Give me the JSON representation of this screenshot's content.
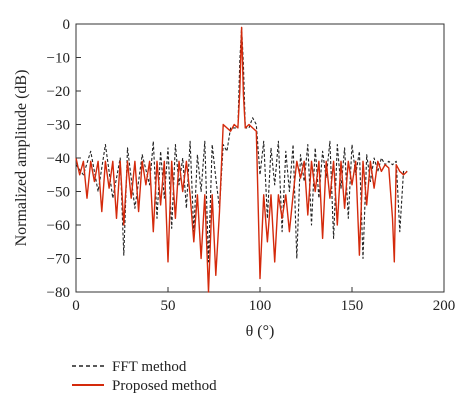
{
  "chart_data": {
    "type": "line",
    "title": "",
    "xlabel": "θ (°)",
    "ylabel": "Normalized amplitude (dB)",
    "xlim": [
      0,
      200
    ],
    "ylim": [
      -80,
      0
    ],
    "xticks": [
      0,
      50,
      100,
      150,
      200
    ],
    "yticks": [
      0,
      -10,
      -20,
      -30,
      -40,
      -50,
      -60,
      -70,
      -80
    ],
    "grid": false,
    "legend_position": "bottom-left",
    "series": [
      {
        "name": "FFT method",
        "color": "#222222",
        "style": "dashed",
        "x": [
          0,
          4,
          8,
          12,
          16,
          20,
          24,
          26,
          28,
          32,
          36,
          40,
          42,
          44,
          46,
          48,
          50,
          52,
          54,
          56,
          58,
          60,
          62,
          64,
          66,
          68,
          70,
          72,
          74,
          76,
          78,
          80,
          82,
          84,
          86,
          88,
          89,
          90,
          91,
          92,
          94,
          96,
          98,
          100,
          102,
          104,
          106,
          108,
          110,
          112,
          114,
          116,
          118,
          120,
          122,
          124,
          126,
          128,
          130,
          132,
          134,
          136,
          138,
          140,
          142,
          144,
          146,
          148,
          150,
          152,
          154,
          156,
          158,
          160,
          162,
          164,
          166,
          168,
          170,
          172,
          174,
          176,
          178,
          180
        ],
        "y": [
          -42,
          -45,
          -38,
          -50,
          -36,
          -52,
          -40,
          -69,
          -37,
          -55,
          -39,
          -48,
          -35,
          -58,
          -38,
          -52,
          -37,
          -61,
          -36,
          -48,
          -40,
          -55,
          -35,
          -62,
          -39,
          -50,
          -35,
          -71,
          -36,
          -46,
          -55,
          -36,
          -38,
          -31,
          -31,
          -31,
          -11,
          -1,
          -12,
          -31,
          -31,
          -28,
          -30,
          -45,
          -35,
          -58,
          -37,
          -48,
          -35,
          -62,
          -38,
          -50,
          -36,
          -70,
          -39,
          -47,
          -36,
          -60,
          -37,
          -52,
          -38,
          -46,
          -35,
          -64,
          -36,
          -49,
          -37,
          -58,
          -36,
          -45,
          -38,
          -70,
          -39,
          -47,
          -40,
          -44,
          -40,
          -42,
          -41,
          -42,
          -41,
          -62,
          -44,
          -44
        ]
      },
      {
        "name": "Proposed method",
        "color": "#d42a0c",
        "style": "solid",
        "x": [
          0,
          2,
          4,
          6,
          8,
          10,
          12,
          14,
          16,
          18,
          20,
          22,
          24,
          26,
          28,
          30,
          32,
          34,
          36,
          38,
          40,
          42,
          44,
          46,
          48,
          50,
          52,
          54,
          56,
          58,
          60,
          62,
          64,
          66,
          68,
          70,
          72,
          74,
          76,
          78,
          80,
          82,
          84,
          86,
          88,
          89,
          90,
          91,
          92,
          94,
          96,
          98,
          100,
          102,
          104,
          106,
          108,
          110,
          112,
          114,
          116,
          118,
          120,
          122,
          124,
          126,
          128,
          130,
          132,
          134,
          136,
          138,
          140,
          142,
          144,
          146,
          148,
          150,
          152,
          154,
          156,
          158,
          160,
          162,
          164,
          166,
          168,
          170,
          172,
          173,
          174,
          176,
          178,
          180
        ],
        "y": [
          -40,
          -45,
          -41,
          -52,
          -41,
          -47,
          -41,
          -56,
          -41,
          -49,
          -41,
          -58,
          -41,
          -60,
          -41,
          -52,
          -41,
          -56,
          -41,
          -48,
          -41,
          -62,
          -41,
          -54,
          -41,
          -71,
          -41,
          -58,
          -41,
          -50,
          -41,
          -51,
          -65,
          -51,
          -70,
          -51,
          -80,
          -51,
          -75,
          -56,
          -30,
          -31,
          -32,
          -30,
          -31,
          -20,
          -1,
          -21,
          -31,
          -30,
          -31,
          -32,
          -76,
          -51,
          -65,
          -51,
          -71,
          -51,
          -58,
          -51,
          -62,
          -51,
          -41,
          -46,
          -41,
          -57,
          -41,
          -50,
          -41,
          -64,
          -41,
          -52,
          -41,
          -60,
          -41,
          -55,
          -41,
          -48,
          -41,
          -69,
          -41,
          -54,
          -41,
          -49,
          -41,
          -44,
          -42,
          -43,
          -58,
          -71,
          -42,
          -44,
          -45,
          -44
        ]
      }
    ]
  }
}
